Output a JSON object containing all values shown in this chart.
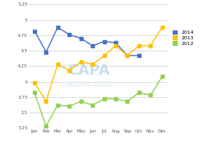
{
  "months": [
    "Jan",
    "Feb",
    "Mar",
    "Apr",
    "May",
    "Jun",
    "Jul",
    "Aug",
    "Sep",
    "Oct",
    "Nov",
    "Dec"
  ],
  "series_2014": [
    4.82,
    4.48,
    4.88,
    4.76,
    4.7,
    4.58,
    4.65,
    4.63,
    4.42,
    4.42,
    null,
    null
  ],
  "series_2013": [
    3.98,
    3.68,
    4.28,
    4.18,
    4.32,
    4.28,
    4.42,
    4.58,
    4.42,
    4.58,
    4.58,
    4.88
  ],
  "series_2012": [
    3.82,
    3.28,
    3.62,
    3.6,
    3.68,
    3.62,
    3.72,
    3.72,
    3.68,
    3.82,
    3.78,
    4.08
  ],
  "color_2014": "#4472c4",
  "color_2013": "#ffc000",
  "color_2012": "#92d050",
  "ylim": [
    3.25,
    5.25
  ],
  "yticks": [
    3.25,
    3.5,
    3.75,
    4.0,
    4.25,
    4.5,
    4.75,
    5.0,
    5.25
  ],
  "ytick_labels": [
    "3.25",
    "3.5",
    "3.75",
    "4",
    "4.25",
    "4.5",
    "4.75",
    "5",
    "5.25"
  ],
  "background_color": "#ffffff",
  "legend_labels": [
    "2014",
    "2013",
    "2012"
  ],
  "marker_size": 2.5,
  "line_width": 1.0
}
